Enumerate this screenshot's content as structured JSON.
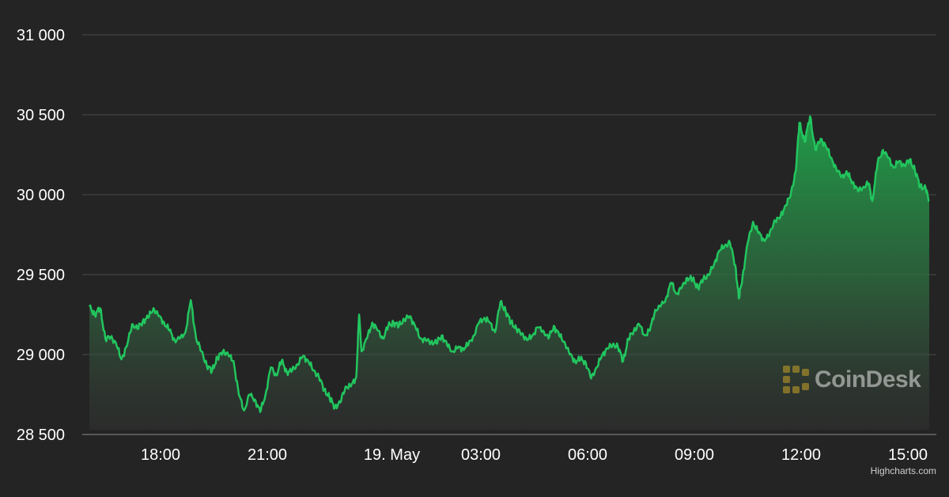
{
  "chart_data": {
    "type": "area",
    "title": "",
    "xlabel": "",
    "ylabel": "",
    "ylim": [
      28500,
      31000
    ],
    "yticks": [
      "31 000",
      "30 500",
      "30 000",
      "29 500",
      "29 000",
      "28 500"
    ],
    "ytick_values": [
      31000,
      30500,
      30000,
      29500,
      29000,
      28500
    ],
    "xlim_hours": [
      16.0,
      39.6
    ],
    "xticks": [
      {
        "label": "18:00",
        "hour": 18
      },
      {
        "label": "21:00",
        "hour": 21
      },
      {
        "label": "19. May",
        "hour": 24.5
      },
      {
        "label": "03:00",
        "hour": 27
      },
      {
        "label": "06:00",
        "hour": 30
      },
      {
        "label": "09:00",
        "hour": 33
      },
      {
        "label": "12:00",
        "hour": 36
      },
      {
        "label": "15:00",
        "hour": 39
      }
    ],
    "grid": true,
    "line_color": "#22c55e",
    "series": [
      {
        "points": [
          [
            16.0,
            29300
          ],
          [
            16.15,
            29250
          ],
          [
            16.3,
            29290
          ],
          [
            16.45,
            29100
          ],
          [
            16.6,
            29110
          ],
          [
            16.75,
            29070
          ],
          [
            16.9,
            28970
          ],
          [
            17.05,
            29050
          ],
          [
            17.2,
            29190
          ],
          [
            17.35,
            29160
          ],
          [
            17.5,
            29210
          ],
          [
            17.65,
            29230
          ],
          [
            17.8,
            29290
          ],
          [
            17.95,
            29240
          ],
          [
            18.1,
            29200
          ],
          [
            18.25,
            29150
          ],
          [
            18.4,
            29090
          ],
          [
            18.55,
            29100
          ],
          [
            18.7,
            29140
          ],
          [
            18.85,
            29340
          ],
          [
            19.0,
            29100
          ],
          [
            19.15,
            29020
          ],
          [
            19.3,
            28930
          ],
          [
            19.45,
            28900
          ],
          [
            19.6,
            28980
          ],
          [
            19.75,
            29020
          ],
          [
            19.9,
            29000
          ],
          [
            20.05,
            28960
          ],
          [
            20.2,
            28750
          ],
          [
            20.35,
            28650
          ],
          [
            20.5,
            28750
          ],
          [
            20.65,
            28720
          ],
          [
            20.8,
            28640
          ],
          [
            20.95,
            28750
          ],
          [
            21.1,
            28920
          ],
          [
            21.25,
            28870
          ],
          [
            21.4,
            28960
          ],
          [
            21.55,
            28890
          ],
          [
            21.7,
            28900
          ],
          [
            21.85,
            28940
          ],
          [
            22.0,
            28990
          ],
          [
            22.15,
            28960
          ],
          [
            22.3,
            28900
          ],
          [
            22.45,
            28860
          ],
          [
            22.6,
            28780
          ],
          [
            22.75,
            28730
          ],
          [
            22.9,
            28670
          ],
          [
            23.05,
            28700
          ],
          [
            23.2,
            28800
          ],
          [
            23.35,
            28800
          ],
          [
            23.5,
            28860
          ],
          [
            23.58,
            29250
          ],
          [
            23.65,
            29020
          ],
          [
            23.8,
            29100
          ],
          [
            23.95,
            29200
          ],
          [
            24.1,
            29150
          ],
          [
            24.25,
            29100
          ],
          [
            24.4,
            29180
          ],
          [
            24.55,
            29200
          ],
          [
            24.7,
            29180
          ],
          [
            24.85,
            29220
          ],
          [
            25.0,
            29240
          ],
          [
            25.15,
            29180
          ],
          [
            25.3,
            29100
          ],
          [
            25.45,
            29090
          ],
          [
            25.6,
            29080
          ],
          [
            25.75,
            29070
          ],
          [
            25.9,
            29120
          ],
          [
            26.05,
            29060
          ],
          [
            26.2,
            29020
          ],
          [
            26.35,
            29040
          ],
          [
            26.5,
            29040
          ],
          [
            26.65,
            29060
          ],
          [
            26.8,
            29120
          ],
          [
            26.95,
            29200
          ],
          [
            27.1,
            29230
          ],
          [
            27.25,
            29200
          ],
          [
            27.4,
            29140
          ],
          [
            27.55,
            29330
          ],
          [
            27.7,
            29270
          ],
          [
            27.85,
            29200
          ],
          [
            28.0,
            29160
          ],
          [
            28.15,
            29130
          ],
          [
            28.3,
            29090
          ],
          [
            28.45,
            29120
          ],
          [
            28.6,
            29170
          ],
          [
            28.75,
            29150
          ],
          [
            28.9,
            29100
          ],
          [
            29.05,
            29180
          ],
          [
            29.2,
            29120
          ],
          [
            29.35,
            29080
          ],
          [
            29.5,
            29000
          ],
          [
            29.65,
            28960
          ],
          [
            29.8,
            28970
          ],
          [
            29.95,
            28950
          ],
          [
            30.1,
            28850
          ],
          [
            30.25,
            28920
          ],
          [
            30.4,
            28990
          ],
          [
            30.55,
            29040
          ],
          [
            30.7,
            29060
          ],
          [
            30.85,
            29050
          ],
          [
            31.0,
            28960
          ],
          [
            31.15,
            29100
          ],
          [
            31.3,
            29150
          ],
          [
            31.45,
            29190
          ],
          [
            31.6,
            29120
          ],
          [
            31.75,
            29150
          ],
          [
            31.9,
            29280
          ],
          [
            32.05,
            29300
          ],
          [
            32.2,
            29350
          ],
          [
            32.35,
            29450
          ],
          [
            32.5,
            29380
          ],
          [
            32.65,
            29420
          ],
          [
            32.8,
            29480
          ],
          [
            32.95,
            29470
          ],
          [
            33.1,
            29420
          ],
          [
            33.25,
            29470
          ],
          [
            33.4,
            29500
          ],
          [
            33.55,
            29560
          ],
          [
            33.7,
            29650
          ],
          [
            33.85,
            29680
          ],
          [
            34.0,
            29700
          ],
          [
            34.15,
            29560
          ],
          [
            34.25,
            29350
          ],
          [
            34.35,
            29480
          ],
          [
            34.5,
            29700
          ],
          [
            34.65,
            29830
          ],
          [
            34.8,
            29760
          ],
          [
            34.95,
            29720
          ],
          [
            35.1,
            29740
          ],
          [
            35.25,
            29840
          ],
          [
            35.4,
            29850
          ],
          [
            35.55,
            29930
          ],
          [
            35.7,
            29990
          ],
          [
            35.85,
            30150
          ],
          [
            35.95,
            30450
          ],
          [
            36.1,
            30330
          ],
          [
            36.25,
            30490
          ],
          [
            36.4,
            30280
          ],
          [
            36.55,
            30350
          ],
          [
            36.7,
            30300
          ],
          [
            36.85,
            30230
          ],
          [
            37.0,
            30150
          ],
          [
            37.15,
            30120
          ],
          [
            37.3,
            30130
          ],
          [
            37.45,
            30080
          ],
          [
            37.6,
            30020
          ],
          [
            37.75,
            30050
          ],
          [
            37.9,
            30070
          ],
          [
            38.0,
            29960
          ],
          [
            38.15,
            30200
          ],
          [
            38.3,
            30280
          ],
          [
            38.45,
            30230
          ],
          [
            38.6,
            30170
          ],
          [
            38.75,
            30210
          ],
          [
            38.9,
            30180
          ],
          [
            39.05,
            30220
          ],
          [
            39.2,
            30150
          ],
          [
            39.35,
            30050
          ],
          [
            39.5,
            30040
          ],
          [
            39.6,
            29960
          ]
        ]
      }
    ]
  },
  "credit": "Highcharts.com",
  "watermark": {
    "text": "CoinDesk",
    "icon": "coindesk-logo-icon"
  }
}
